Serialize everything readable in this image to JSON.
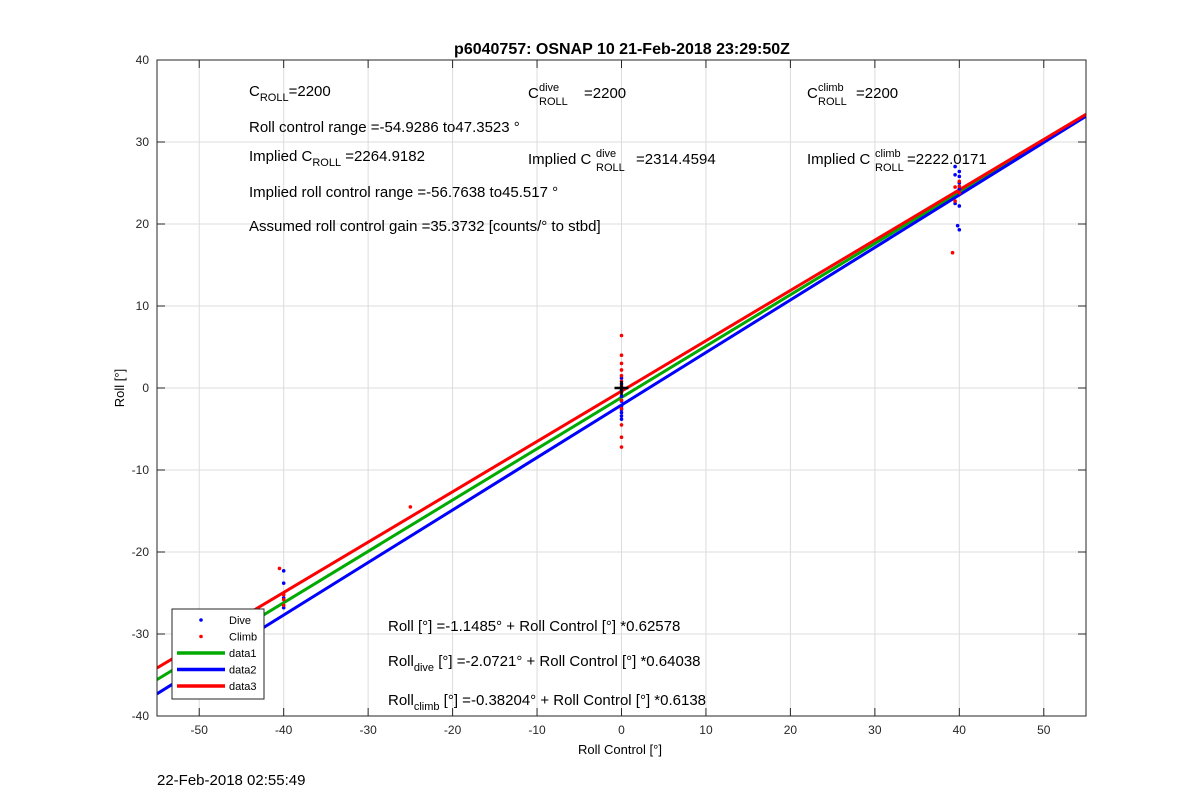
{
  "chart_data": {
    "type": "scatter",
    "title": "p6040757: OSNAP 10 21-Feb-2018 23:29:50Z",
    "xlabel": "Roll Control [°]",
    "ylabel": "Roll [°]",
    "xlim": [
      -55,
      55
    ],
    "ylim": [
      -40,
      40
    ],
    "xticks": [
      -50,
      -40,
      -30,
      -20,
      -10,
      0,
      10,
      20,
      30,
      40,
      50
    ],
    "yticks": [
      -40,
      -30,
      -20,
      -10,
      0,
      10,
      20,
      30,
      40
    ],
    "grid": true,
    "legend_position": "bottom-left",
    "series": [
      {
        "name": "Dive",
        "kind": "points",
        "color": "#0000ff",
        "x": [
          -40,
          -40,
          -40,
          -40,
          0,
          0,
          0,
          0,
          0,
          0,
          0,
          0,
          0,
          0,
          39.5,
          39.5,
          39.5,
          39.8,
          40,
          40,
          40,
          40,
          40,
          40
        ],
        "y": [
          -22.3,
          -23.8,
          -25.6,
          -26.8,
          1.2,
          0.5,
          -0.3,
          -1.0,
          -1.6,
          -2.2,
          -2.6,
          -3.0,
          -3.4,
          -3.8,
          27.0,
          26.0,
          22.5,
          19.8,
          26.4,
          25.8,
          25.0,
          24.3,
          22.2,
          19.3
        ]
      },
      {
        "name": "Climb",
        "kind": "points",
        "color": "#ff0000",
        "x": [
          -40.5,
          -40,
          -40,
          -40,
          -25,
          0,
          0,
          0,
          0,
          0,
          0,
          0,
          0,
          0,
          0,
          0,
          0,
          0,
          39.2,
          39.5,
          39.5,
          40,
          40,
          40
        ],
        "y": [
          -22.0,
          -25.2,
          -25.8,
          -26.5,
          -14.5,
          6.4,
          4.0,
          3.0,
          2.2,
          1.5,
          0.8,
          0.2,
          -0.5,
          -1.5,
          -2.5,
          -4.5,
          -6.0,
          -7.2,
          16.5,
          22.8,
          24.5,
          25.2,
          24.6,
          23.8
        ]
      },
      {
        "name": "data1",
        "kind": "line",
        "color": "#00aa00",
        "intercept": -1.1485,
        "slope": 0.62578
      },
      {
        "name": "data2",
        "kind": "line",
        "color": "#0000ff",
        "intercept": -2.0721,
        "slope": 0.64038
      },
      {
        "name": "data3",
        "kind": "line",
        "color": "#ff0000",
        "intercept": -0.38204,
        "slope": 0.6138
      }
    ],
    "marker": {
      "symbol": "+",
      "x": 0,
      "y": 0,
      "color": "#000000"
    },
    "annotations": {
      "c_roll_lbl": "C",
      "c_roll_sub": "ROLL",
      "c_roll_val": "=2200",
      "c_dive_lbl": "C",
      "c_dive_sup": "dive",
      "c_dive_sub": "ROLL",
      "c_dive_val": "=2200",
      "c_climb_lbl": "C",
      "c_climb_sup": "climb",
      "c_climb_sub": "ROLL",
      "c_climb_val": "=2200",
      "range_line": "Roll control range =-54.9286 to47.3523 °",
      "implied_lbl": "Implied C",
      "implied_sub": "ROLL",
      "implied_val": " =2264.9182",
      "implied_dive_lbl": "Implied C",
      "implied_dive_sup": "dive",
      "implied_dive_sub": "ROLL",
      "implied_dive_val": " =2314.4594",
      "implied_climb_lbl": "Implied C",
      "implied_climb_sup": "climb",
      "implied_climb_sub": "ROLL",
      "implied_climb_val": " =2222.0171",
      "implied_range_line": "Implied roll control range =-56.7638 to45.517 °",
      "gain_line": "Assumed roll control gain =35.3732 [counts/° to stbd]",
      "fit_all": "Roll [°] =-1.1485° + Roll Control [°] *0.62578",
      "fit_dive_lbl": "Roll",
      "fit_dive_sub": "dive",
      "fit_dive_rest": " [°] =-2.0721° + Roll Control [°] *0.64038",
      "fit_climb_lbl": "Roll",
      "fit_climb_sub": "climb",
      "fit_climb_rest": " [°] =-0.38204° + Roll Control [°] *0.6138"
    }
  },
  "footer_timestamp": "22-Feb-2018 02:55:49"
}
